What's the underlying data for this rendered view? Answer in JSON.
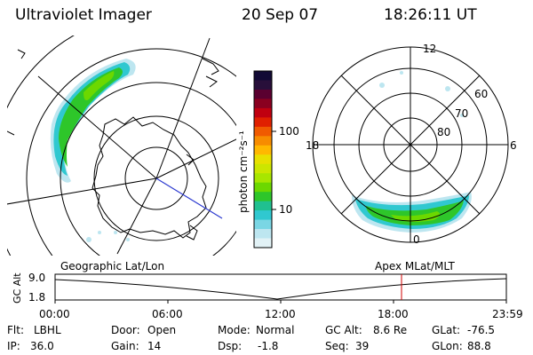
{
  "header": {
    "instrument": "Ultraviolet Imager",
    "date": "20 Sep 07",
    "time": "18:26:11 UT"
  },
  "colorbar": {
    "unit": "photon cm⁻²s⁻¹",
    "tick_100": "100",
    "tick_10": "10",
    "colors": [
      "#120a35",
      "#280f3a",
      "#5a0030",
      "#8a0020",
      "#c00010",
      "#e02000",
      "#f05a00",
      "#f78c00",
      "#ffb800",
      "#e8e000",
      "#cce600",
      "#a8e600",
      "#6cd800",
      "#2ec62a",
      "#20c090",
      "#30c8d0",
      "#7ad6e4",
      "#bde6f0",
      "#e2f2f6"
    ]
  },
  "right_map": {
    "mlt_labels": {
      "top": "12",
      "left": "18",
      "right": "6",
      "bottom": "0"
    },
    "lat_labels": [
      "60",
      "70",
      "80"
    ]
  },
  "footer": {
    "left_label": "Geographic Lat/Lon",
    "right_label": "Apex  MLat/MLT",
    "gc_alt_axis": "GC Alt",
    "ytick_top": "9.0",
    "ytick_bottom": "1.8",
    "xticks": [
      "00:00",
      "06:00",
      "12:00",
      "18:00",
      "23:59"
    ],
    "current_marker_time": "18:26"
  },
  "status": {
    "row1": [
      {
        "k": "Flt:",
        "v": "LBHL"
      },
      {
        "k": "Door:",
        "v": "Open"
      },
      {
        "k": "Mode:",
        "v": "Normal"
      },
      {
        "k": "GC Alt:",
        "v": "8.6 Re"
      },
      {
        "k": "GLat:",
        "v": "-76.5"
      }
    ],
    "row2": [
      {
        "k": "IP:",
        "v": "36.0"
      },
      {
        "k": "Gain:",
        "v": "14"
      },
      {
        "k": "Dsp:",
        "v": "-1.8"
      },
      {
        "k": "Seq:",
        "v": "39"
      },
      {
        "k": "GLon:",
        "v": "88.8"
      }
    ]
  }
}
